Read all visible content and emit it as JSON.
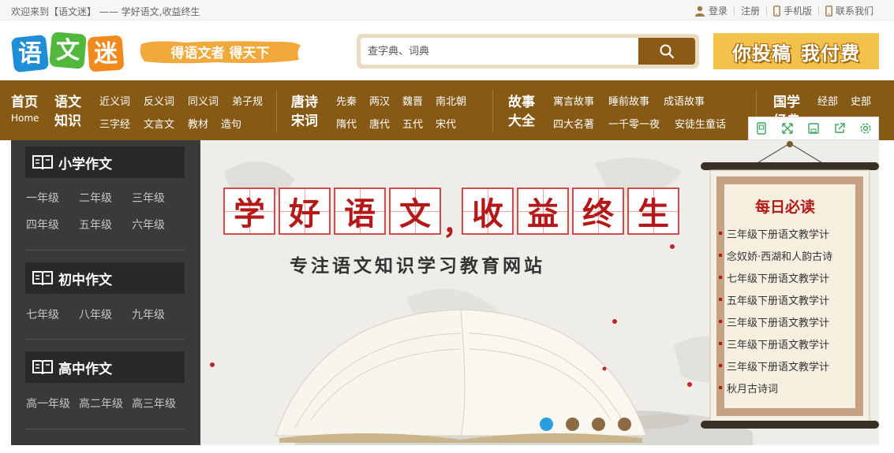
{
  "topbar": {
    "welcome": "欢迎来到【语文迷】 —— 学好语文,收益终生",
    "login": "登录",
    "register": "注册",
    "mobile": "手机版",
    "contact": "联系我们"
  },
  "header": {
    "logo_text": "语文迷",
    "slogan": "得语文者 得天下",
    "search_placeholder": "查字典、词典",
    "ad_text_1": "你投稿",
    "ad_text_2": "我付费"
  },
  "nav": {
    "home": "首页",
    "home_en": "Home",
    "yuwen_1": "语文",
    "yuwen_2": "知识",
    "yuwen_links": [
      "近义词",
      "反义词",
      "同义词",
      "弟子规",
      "三字经",
      "文言文",
      "教材",
      "造句"
    ],
    "tangshi_1": "唐诗",
    "tangshi_2": "宋词",
    "tangshi_links": [
      "先秦",
      "两汉",
      "魏晋",
      "南北朝",
      "隋代",
      "唐代",
      "五代",
      "宋代"
    ],
    "story_1": "故事",
    "story_2": "大全",
    "story_links": [
      "寓言故事",
      "睡前故事",
      "成语故事",
      "四大名著",
      "一千零一夜",
      "安徒生童话"
    ],
    "guoxue_1": "国学",
    "guoxue_2": "经典",
    "guoxue_links": [
      "经部",
      "史部"
    ]
  },
  "sidebar": {
    "sections": [
      {
        "title": "小学作文",
        "grades": [
          "一年级",
          "二年级",
          "三年级",
          "四年级",
          "五年级",
          "六年级"
        ]
      },
      {
        "title": "初中作文",
        "grades": [
          "七年级",
          "八年级",
          "九年级"
        ]
      },
      {
        "title": "高中作文",
        "grades": [
          "高一年级",
          "高二年级",
          "高三年级"
        ]
      }
    ]
  },
  "banner": {
    "slogan_chars": [
      "学",
      "好",
      "语",
      "文",
      "，",
      "收",
      "益",
      "终",
      "生"
    ],
    "subtitle": "专注语文知识学习教育网站",
    "carousel_count": 4,
    "carousel_active": 1
  },
  "daily": {
    "title": "每日必读",
    "items": [
      "三年级下册语文教学计",
      "念奴娇·西湖和人韵古诗",
      "七年级下册语文教学计",
      "五年级下册语文教学计",
      "三年级下册语文教学计",
      "三年级下册语文教学计",
      "三年级下册语文教学计",
      "秋月古诗词"
    ]
  },
  "colors": {
    "nav_brown": "#865915",
    "sidebar_dark": "#3c3a38",
    "accent_red": "#b41818",
    "carousel_active": "#29a0dd"
  }
}
